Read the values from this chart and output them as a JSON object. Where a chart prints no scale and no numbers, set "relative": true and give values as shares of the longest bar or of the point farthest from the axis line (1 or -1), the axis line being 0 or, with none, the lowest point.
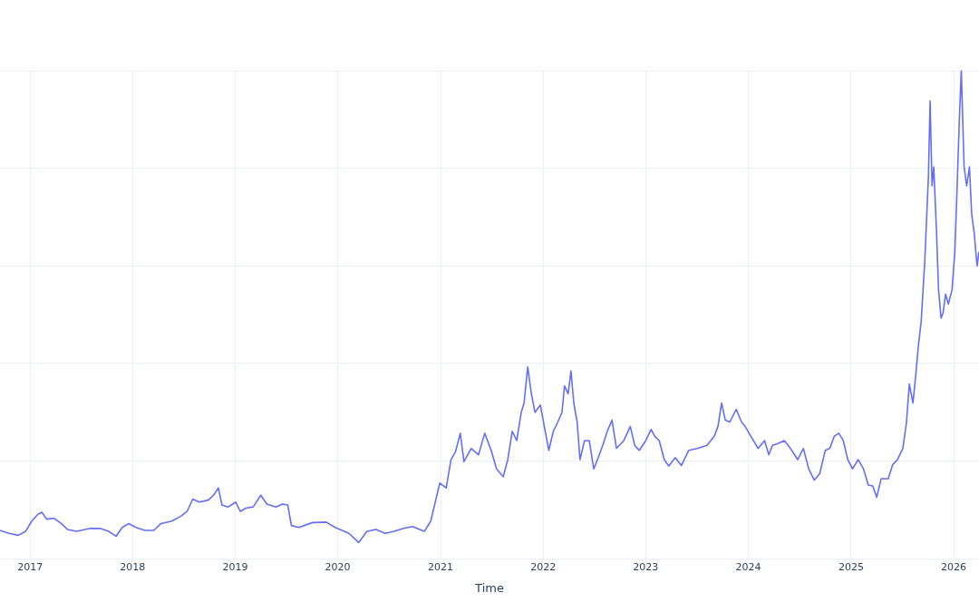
{
  "chart_data": {
    "type": "line",
    "xlabel": "Time",
    "relative": true,
    "grid": true,
    "legend": false,
    "marker": "none",
    "line_style": "solid",
    "xlim": [
      "2016-09-16",
      "2026-04-01"
    ],
    "xticks": [
      "2017",
      "2018",
      "2019",
      "2020",
      "2021",
      "2022",
      "2023",
      "2024",
      "2025",
      "2026"
    ],
    "series": [
      {
        "color": "#636efa",
        "x": [
          "2016-09-16",
          "2016-10-18",
          "2016-11-20",
          "2016-12-16",
          "2017-01-07",
          "2017-01-29",
          "2017-02-12",
          "2017-03-01",
          "2017-03-27",
          "2017-04-22",
          "2017-05-14",
          "2017-06-16",
          "2017-08-04",
          "2017-09-06",
          "2017-10-08",
          "2017-11-03",
          "2017-11-25",
          "2017-12-18",
          "2018-01-13",
          "2018-02-14",
          "2018-03-17",
          "2018-04-12",
          "2018-05-20",
          "2018-06-22",
          "2018-07-14",
          "2018-08-03",
          "2018-08-26",
          "2018-09-27",
          "2018-10-16",
          "2018-11-02",
          "2018-11-15",
          "2018-12-07",
          "2019-01-03",
          "2019-01-19",
          "2019-02-10",
          "2019-03-06",
          "2019-04-02",
          "2019-04-24",
          "2019-05-26",
          "2019-06-18",
          "2019-07-07",
          "2019-07-20",
          "2019-08-16",
          "2019-10-03",
          "2019-11-21",
          "2019-12-23",
          "2020-02-10",
          "2020-03-15",
          "2020-04-14",
          "2020-05-16",
          "2020-06-18",
          "2020-07-20",
          "2020-08-22",
          "2020-09-23",
          "2020-11-04",
          "2020-11-27",
          "2020-12-13",
          "2020-12-29",
          "2021-01-21",
          "2021-02-07",
          "2021-02-23",
          "2021-03-12",
          "2021-03-25",
          "2021-04-20",
          "2021-05-16",
          "2021-06-07",
          "2021-06-30",
          "2021-07-19",
          "2021-08-12",
          "2021-08-28",
          "2021-09-13",
          "2021-09-29",
          "2021-10-15",
          "2021-10-25",
          "2021-11-07",
          "2021-11-20",
          "2021-12-03",
          "2021-12-22",
          "2022-01-05",
          "2022-01-21",
          "2022-02-06",
          "2022-02-22",
          "2022-03-09",
          "2022-03-18",
          "2022-03-31",
          "2022-04-10",
          "2022-04-20",
          "2022-05-02",
          "2022-05-12",
          "2022-05-28",
          "2022-06-14",
          "2022-06-30",
          "2022-07-16",
          "2022-08-01",
          "2022-08-17",
          "2022-09-03",
          "2022-09-19",
          "2022-10-15",
          "2022-11-07",
          "2022-11-23",
          "2022-12-09",
          "2023-01-01",
          "2023-01-20",
          "2023-02-02",
          "2023-02-18",
          "2023-03-08",
          "2023-03-24",
          "2023-04-16",
          "2023-05-08",
          "2023-06-03",
          "2023-07-05",
          "2023-08-07",
          "2023-09-02",
          "2023-09-15",
          "2023-09-28",
          "2023-10-11",
          "2023-10-27",
          "2023-11-19",
          "2023-12-08",
          "2023-12-21",
          "2024-01-10",
          "2024-02-05",
          "2024-02-28",
          "2024-03-14",
          "2024-03-27",
          "2024-04-15",
          "2024-05-08",
          "2024-05-30",
          "2024-06-25",
          "2024-07-15",
          "2024-08-03",
          "2024-08-23",
          "2024-09-11",
          "2024-10-01",
          "2024-10-17",
          "2024-11-02",
          "2024-11-18",
          "2024-12-04",
          "2024-12-20",
          "2025-01-06",
          "2025-01-26",
          "2025-02-14",
          "2025-03-03",
          "2025-03-19",
          "2025-04-02",
          "2025-04-18",
          "2025-05-13",
          "2025-05-29",
          "2025-06-15",
          "2025-07-04",
          "2025-07-17",
          "2025-07-27",
          "2025-08-09",
          "2025-08-19",
          "2025-08-28",
          "2025-09-07",
          "2025-09-20",
          "2025-10-03",
          "2025-10-09",
          "2025-10-16",
          "2025-10-22",
          "2025-11-01",
          "2025-11-08",
          "2025-11-17",
          "2025-11-24",
          "2025-12-03",
          "2025-12-13",
          "2025-12-26",
          "2026-01-05",
          "2026-01-11",
          "2026-01-21",
          "2026-01-28",
          "2026-02-07",
          "2026-02-16",
          "2026-02-26",
          "2026-03-06",
          "2026-03-15",
          "2026-03-25",
          "2026-04-01"
        ],
        "values": [
          0.058,
          0.052,
          0.048,
          0.056,
          0.077,
          0.091,
          0.095,
          0.081,
          0.083,
          0.072,
          0.06,
          0.056,
          0.062,
          0.062,
          0.056,
          0.046,
          0.064,
          0.072,
          0.064,
          0.058,
          0.058,
          0.072,
          0.077,
          0.087,
          0.097,
          0.122,
          0.116,
          0.12,
          0.13,
          0.145,
          0.11,
          0.106,
          0.116,
          0.097,
          0.104,
          0.106,
          0.13,
          0.112,
          0.106,
          0.112,
          0.11,
          0.068,
          0.064,
          0.074,
          0.075,
          0.064,
          0.052,
          0.033,
          0.056,
          0.06,
          0.052,
          0.056,
          0.062,
          0.066,
          0.056,
          0.077,
          0.116,
          0.155,
          0.145,
          0.203,
          0.219,
          0.257,
          0.199,
          0.226,
          0.213,
          0.257,
          0.222,
          0.184,
          0.168,
          0.203,
          0.261,
          0.242,
          0.3,
          0.319,
          0.393,
          0.338,
          0.3,
          0.315,
          0.271,
          0.222,
          0.261,
          0.28,
          0.3,
          0.354,
          0.338,
          0.385,
          0.319,
          0.28,
          0.203,
          0.242,
          0.242,
          0.184,
          0.207,
          0.232,
          0.261,
          0.284,
          0.226,
          0.242,
          0.271,
          0.232,
          0.222,
          0.242,
          0.265,
          0.251,
          0.242,
          0.203,
          0.19,
          0.207,
          0.191,
          0.222,
          0.226,
          0.232,
          0.251,
          0.271,
          0.319,
          0.284,
          0.28,
          0.306,
          0.28,
          0.271,
          0.251,
          0.226,
          0.242,
          0.213,
          0.232,
          0.236,
          0.242,
          0.226,
          0.203,
          0.226,
          0.184,
          0.161,
          0.174,
          0.222,
          0.226,
          0.251,
          0.257,
          0.242,
          0.203,
          0.184,
          0.203,
          0.184,
          0.151,
          0.149,
          0.126,
          0.164,
          0.164,
          0.193,
          0.203,
          0.226,
          0.28,
          0.358,
          0.319,
          0.377,
          0.435,
          0.484,
          0.609,
          0.783,
          0.938,
          0.764,
          0.803,
          0.667,
          0.551,
          0.493,
          0.503,
          0.542,
          0.522,
          0.551,
          0.629,
          0.725,
          0.899,
          1,
          0.803,
          0.764,
          0.803,
          0.706,
          0.667,
          0.6,
          0.629
        ]
      }
    ]
  }
}
